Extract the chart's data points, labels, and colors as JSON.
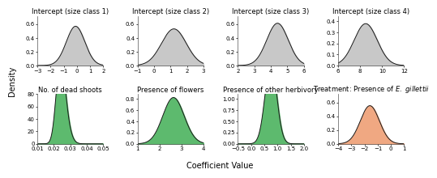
{
  "panels": [
    {
      "title": "Intercept (size class 1)",
      "mean": -0.1,
      "std": 0.7,
      "skew": 0,
      "xlim": [
        -3,
        2
      ],
      "xticks": [
        -3,
        -2,
        -1,
        0,
        1,
        2
      ],
      "ylim": [
        0,
        0.72
      ],
      "yticks": [
        0.0,
        0.2,
        0.4,
        0.6
      ],
      "color": "#c8c8c8",
      "row": 0,
      "col": 0
    },
    {
      "title": "Intercept (size class 2)",
      "mean": 1.2,
      "std": 0.75,
      "skew": 0,
      "xlim": [
        -1,
        3
      ],
      "xticks": [
        -1,
        0,
        1,
        2,
        3
      ],
      "ylim": [
        0,
        0.72
      ],
      "yticks": [
        0.0,
        0.2,
        0.4,
        0.6
      ],
      "color": "#c8c8c8",
      "row": 0,
      "col": 1
    },
    {
      "title": "Intercept (size class 3)",
      "mean": 4.4,
      "std": 0.65,
      "skew": 0,
      "xlim": [
        2,
        6
      ],
      "xticks": [
        2,
        3,
        4,
        5,
        6
      ],
      "ylim": [
        0,
        0.72
      ],
      "yticks": [
        0.0,
        0.2,
        0.4,
        0.6
      ],
      "color": "#c8c8c8",
      "row": 0,
      "col": 2
    },
    {
      "title": "Intercept (size class 4)",
      "mean": 8.5,
      "std": 1.05,
      "skew": 0,
      "xlim": [
        6,
        12
      ],
      "xticks": [
        6,
        8,
        10,
        12
      ],
      "ylim": [
        0,
        0.45
      ],
      "yticks": [
        0.0,
        0.1,
        0.2,
        0.3,
        0.4
      ],
      "color": "#c8c8c8",
      "row": 0,
      "col": 3
    },
    {
      "title": "No. of dead shoots",
      "mean": 0.022,
      "std": 0.004,
      "skew": 1.5,
      "xlim": [
        0.01,
        0.05
      ],
      "xticks": [
        0.01,
        0.02,
        0.03,
        0.04,
        0.05
      ],
      "ylim": [
        0,
        80
      ],
      "yticks": [
        0,
        20,
        40,
        60,
        80
      ],
      "color": "#5dba6e",
      "row": 1,
      "col": 0
    },
    {
      "title": "Presence of flowers",
      "mean": 2.45,
      "std": 0.52,
      "skew": 0.5,
      "xlim": [
        1,
        4
      ],
      "xticks": [
        1,
        2,
        3,
        4
      ],
      "ylim": [
        0,
        0.88
      ],
      "yticks": [
        0.0,
        0.2,
        0.4,
        0.6,
        0.8
      ],
      "color": "#5dba6e",
      "row": 1,
      "col": 1
    },
    {
      "title": "Presence of other herbivory",
      "mean": 0.75,
      "std": 0.22,
      "skew": 0,
      "xlim": [
        -0.5,
        2.0
      ],
      "xticks": [
        -0.5,
        0.0,
        0.5,
        1.0,
        1.5,
        2.0
      ],
      "ylim": [
        0,
        1.1
      ],
      "yticks": [
        0.0,
        0.25,
        0.5,
        0.75,
        1.0
      ],
      "color": "#5dba6e",
      "row": 1,
      "col": 2
    },
    {
      "title": "Treatment: Presence of E. gillettii",
      "mean": -1.6,
      "std": 0.72,
      "skew": 0,
      "xlim": [
        -4,
        1
      ],
      "xticks": [
        -4,
        -3,
        -2,
        -1,
        0,
        1
      ],
      "ylim": [
        0,
        0.72
      ],
      "yticks": [
        0.0,
        0.2,
        0.4,
        0.6
      ],
      "color": "#f0a882",
      "row": 1,
      "col": 3
    }
  ],
  "ylabel": "Density",
  "xlabel": "Coefficient Value",
  "bg_color": "#ffffff",
  "title_fontsize": 6.0,
  "tick_fontsize": 5.0,
  "label_fontsize": 7.0,
  "line_color": "#1a1a1a"
}
